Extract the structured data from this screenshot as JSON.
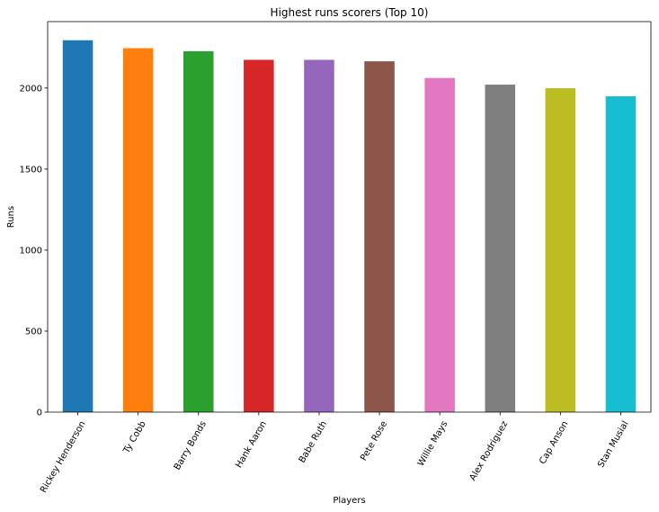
{
  "chart_data": {
    "type": "bar",
    "title": "Highest runs scorers (Top 10)",
    "xlabel": "Players",
    "ylabel": "Runs",
    "categories": [
      "Rickey Henderson",
      "Ty Cobb",
      "Barry Bonds",
      "Hank Aaron",
      "Babe Ruth",
      "Pete Rose",
      "Willie Mays",
      "Alex Rodriguez",
      "Cap Anson",
      "Stan Musial"
    ],
    "values": [
      2295,
      2246,
      2227,
      2174,
      2174,
      2165,
      2062,
      2021,
      1999,
      1949
    ],
    "colors": [
      "#1f77b4",
      "#ff7f0e",
      "#2ca02c",
      "#d62728",
      "#9467bd",
      "#8c564b",
      "#e377c2",
      "#7f7f7f",
      "#bcbd22",
      "#17becf"
    ],
    "ylim": [
      0,
      2410
    ],
    "yticks": [
      0,
      500,
      1000,
      1500,
      2000
    ],
    "x_tick_rotation_deg": 60,
    "grid": false,
    "legend": "none"
  }
}
